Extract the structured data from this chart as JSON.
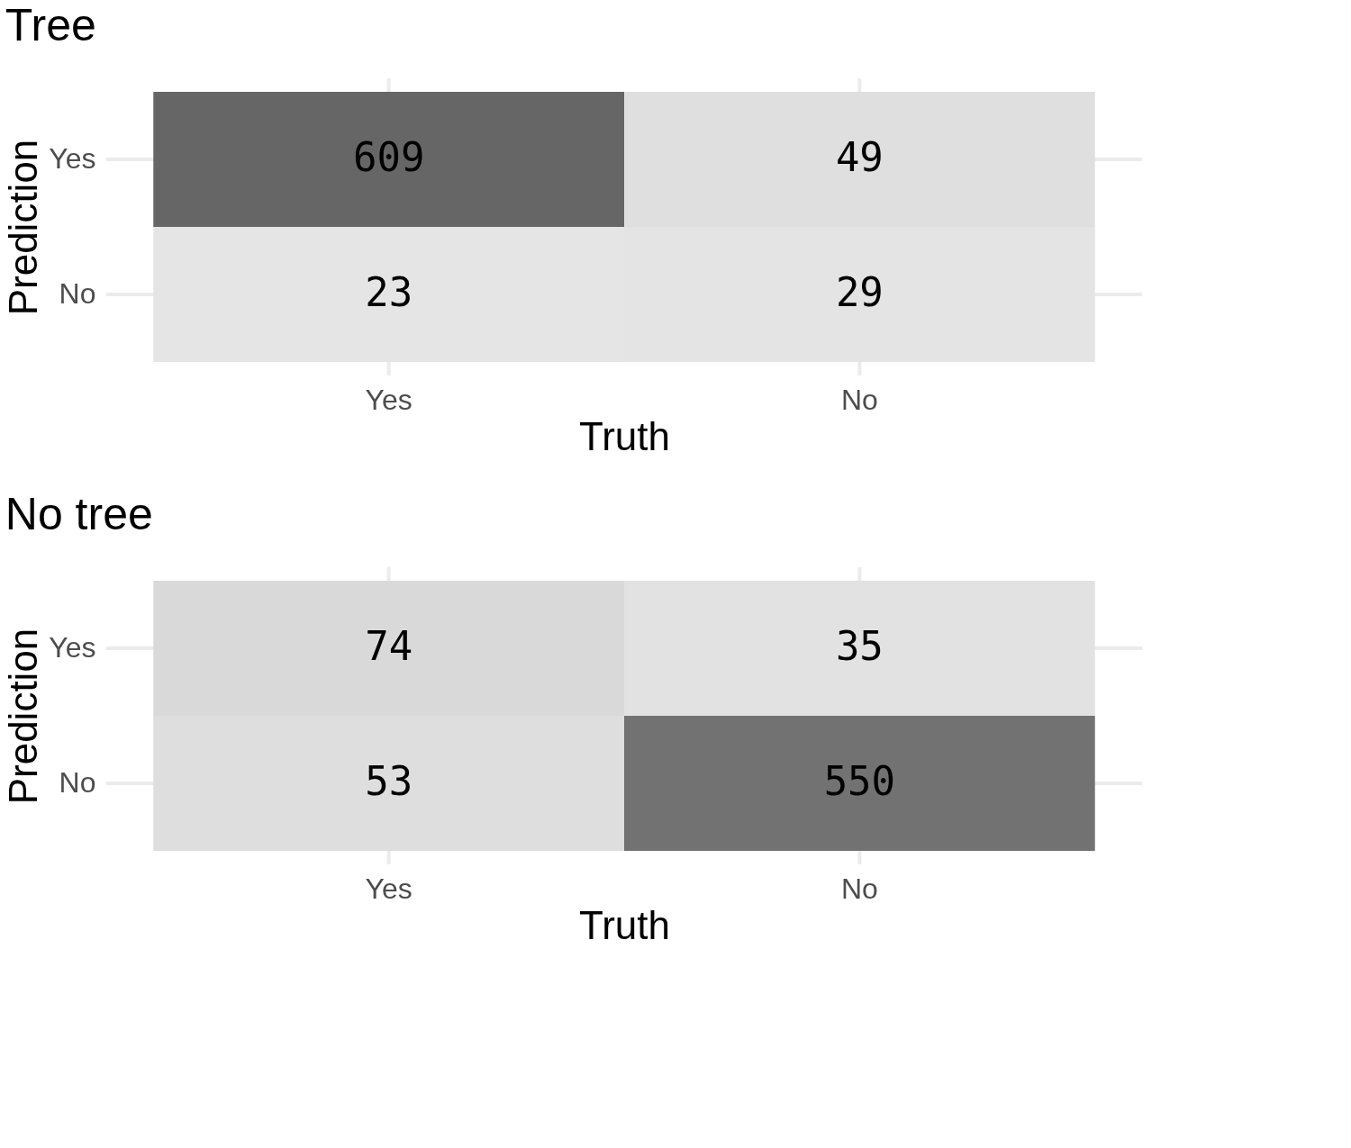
{
  "chart_data": [
    {
      "type": "heatmap",
      "title": "Tree",
      "xlabel": "Truth",
      "ylabel": "Prediction",
      "categories": [
        "Yes",
        "No"
      ],
      "y_categories": [
        "Yes",
        "No"
      ],
      "cells": [
        [
          609,
          49
        ],
        [
          23,
          29
        ]
      ],
      "data_labels": true,
      "grid": true
    },
    {
      "type": "heatmap",
      "title": "No tree",
      "xlabel": "Truth",
      "ylabel": "Prediction",
      "categories": [
        "Yes",
        "No"
      ],
      "y_categories": [
        "Yes",
        "No"
      ],
      "cells": [
        [
          74,
          35
        ],
        [
          53,
          550
        ]
      ],
      "data_labels": true,
      "grid": true
    }
  ]
}
